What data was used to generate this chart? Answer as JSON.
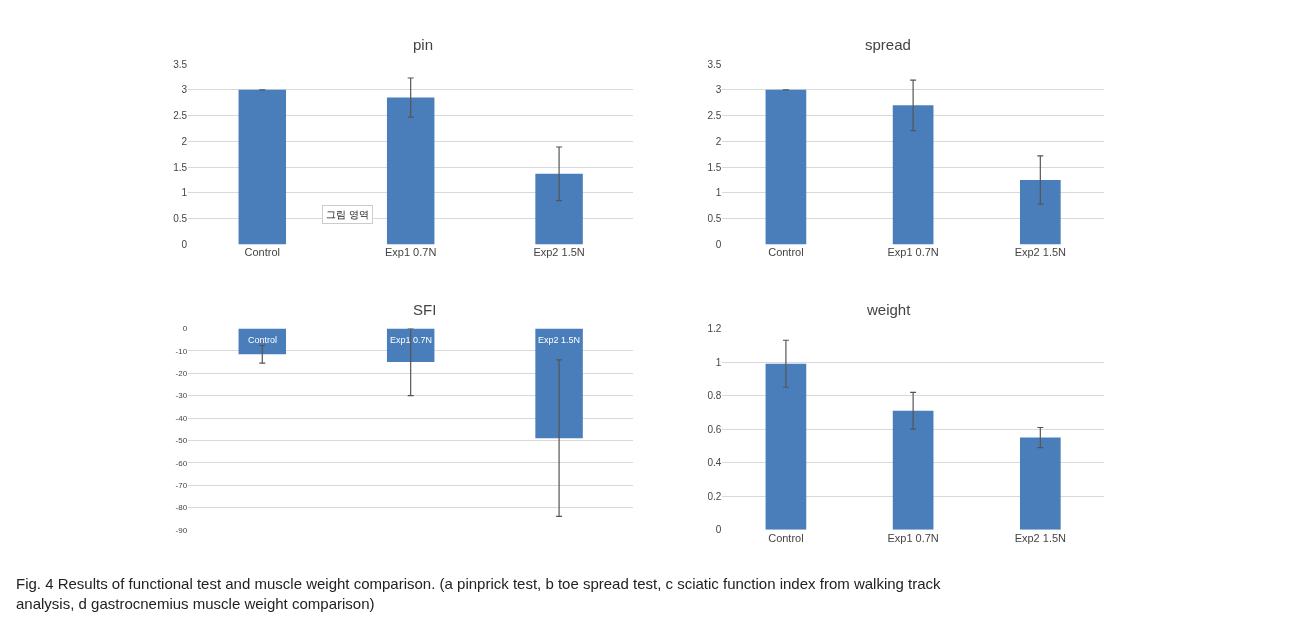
{
  "chart_data": [
    {
      "type": "bar",
      "title": "pin",
      "categories": [
        "Control",
        "Exp1 0.7N",
        "Exp2 1.5N"
      ],
      "values": [
        3,
        2.85,
        1.37
      ],
      "errors": [
        0,
        0.38,
        0.52
      ],
      "color": "#4a7ebb",
      "ylim": [
        0,
        3.5
      ],
      "yticks": [
        0,
        0.5,
        1,
        1.5,
        2,
        2.5,
        3,
        3.5
      ],
      "grid": "y",
      "annotations": [
        "그림 영역"
      ]
    },
    {
      "type": "bar",
      "title": "spread",
      "categories": [
        "Control",
        "Exp1 0.7N",
        "Exp2 1.5N"
      ],
      "values": [
        3,
        2.7,
        1.25
      ],
      "errors": [
        0,
        0.49,
        0.47
      ],
      "color": "#4a7ebb",
      "ylim": [
        0,
        3.5
      ],
      "yticks": [
        0,
        0.5,
        1,
        1.5,
        2,
        2.5,
        3,
        3.5
      ],
      "grid": "y"
    },
    {
      "type": "bar",
      "title": "SFI",
      "categories": [
        "Control",
        "Exp1 0.7N",
        "Exp2 1.5N"
      ],
      "values": [
        -11.5,
        -15,
        -49
      ],
      "errors": [
        4,
        15,
        35
      ],
      "color": "#4a7ebb",
      "ylim": [
        -90,
        0
      ],
      "yticks": [
        -90,
        -80,
        -70,
        -60,
        -50,
        -40,
        -30,
        -20,
        -10,
        0
      ],
      "grid": "y"
    },
    {
      "type": "bar",
      "title": "weight",
      "categories": [
        "Control",
        "Exp1 0.7N",
        "Exp2 1.5N"
      ],
      "values": [
        0.99,
        0.71,
        0.55
      ],
      "errors": [
        0.14,
        0.11,
        0.06
      ],
      "color": "#4a7ebb",
      "ylim": [
        0,
        1.2
      ],
      "yticks": [
        0,
        0.2,
        0.4,
        0.6,
        0.8,
        1,
        1.2
      ],
      "grid": "y",
      "annotations": [
        "Fig. 4 Results of functional test and muscle weight comparison. (a pinprick test, b toe spread test, c sciatic function index from walking track analysis, d gastrocnemius muscle weight comparison)"
      ]
    }
  ]
}
